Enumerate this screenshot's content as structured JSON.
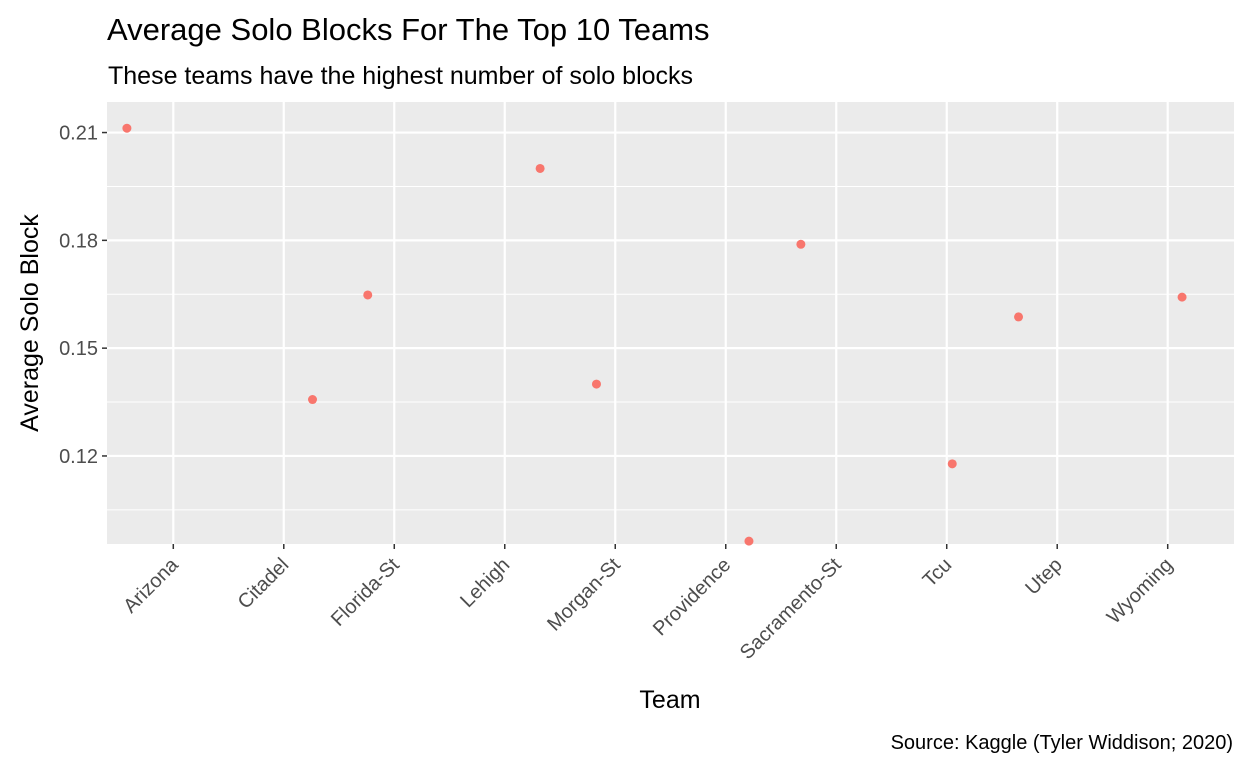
{
  "chart_data": {
    "type": "scatter",
    "title": "Average Solo Blocks For The Top 10 Teams",
    "subtitle": "These teams have the highest number of solo blocks",
    "xlabel": "Team",
    "ylabel": "Average Solo Block",
    "caption": "Source: Kaggle (Tyler Widdison; 2020)",
    "categories": [
      "Arizona",
      "Citadel",
      "Florida-St",
      "Lehigh",
      "Morgan-St",
      "Providence",
      "Sacramento-St",
      "Tcu",
      "Utep",
      "Wyoming"
    ],
    "y_ticks": [
      "0.12",
      "0.15",
      "0.18",
      "0.21"
    ],
    "ylim": [
      0.0955,
      0.2185
    ],
    "points": [
      {
        "category": "Arizona",
        "jitter": -0.42,
        "y": 0.2112
      },
      {
        "category": "Citadel",
        "jitter": 0.26,
        "y": 0.1357
      },
      {
        "category": "Florida-St",
        "jitter": -0.24,
        "y": 0.1648
      },
      {
        "category": "Lehigh",
        "jitter": 0.32,
        "y": 0.2
      },
      {
        "category": "Morgan-St",
        "jitter": -0.17,
        "y": 0.14
      },
      {
        "category": "Providence",
        "jitter": 0.21,
        "y": 0.0963
      },
      {
        "category": "Sacramento-St",
        "jitter": -0.32,
        "y": 0.1789
      },
      {
        "category": "Tcu",
        "jitter": 0.05,
        "y": 0.1178
      },
      {
        "category": "Utep",
        "jitter": -0.35,
        "y": 0.1587
      },
      {
        "category": "Wyoming",
        "jitter": 0.13,
        "y": 0.1642
      }
    ],
    "point_color": "#F8766D",
    "panel_background": "#EBEBEB",
    "grid": true,
    "legend": "none"
  }
}
